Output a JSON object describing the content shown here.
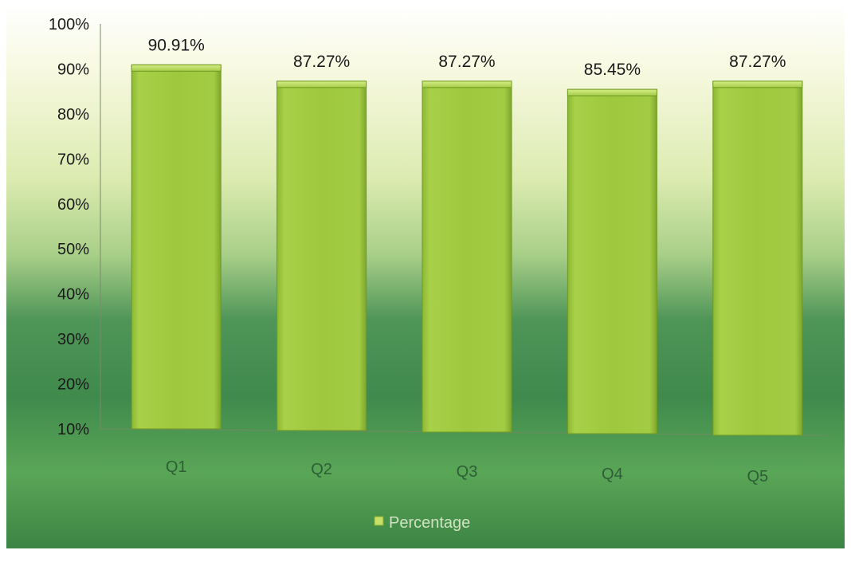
{
  "chart_data": {
    "type": "bar",
    "categories": [
      "Q1",
      "Q2",
      "Q3",
      "Q4",
      "Q5"
    ],
    "series": [
      {
        "name": "Percentage",
        "values": [
          90.91,
          87.27,
          87.27,
          85.45,
          87.27
        ],
        "labels": [
          "90.91%",
          "87.27%",
          "87.27%",
          "85.45%",
          "87.27%"
        ]
      }
    ],
    "y_ticks": [
      "10%",
      "20%",
      "30%",
      "40%",
      "50%",
      "60%",
      "70%",
      "80%",
      "90%",
      "100%"
    ],
    "ylim": [
      10,
      100
    ],
    "grid": false,
    "legend_position": "bottom",
    "colors": {
      "bar": "#9fc83e",
      "bar_edge": "#6f9a22",
      "background_top": "#f7f9dc",
      "background_bottom": "#2f7a3e"
    }
  }
}
